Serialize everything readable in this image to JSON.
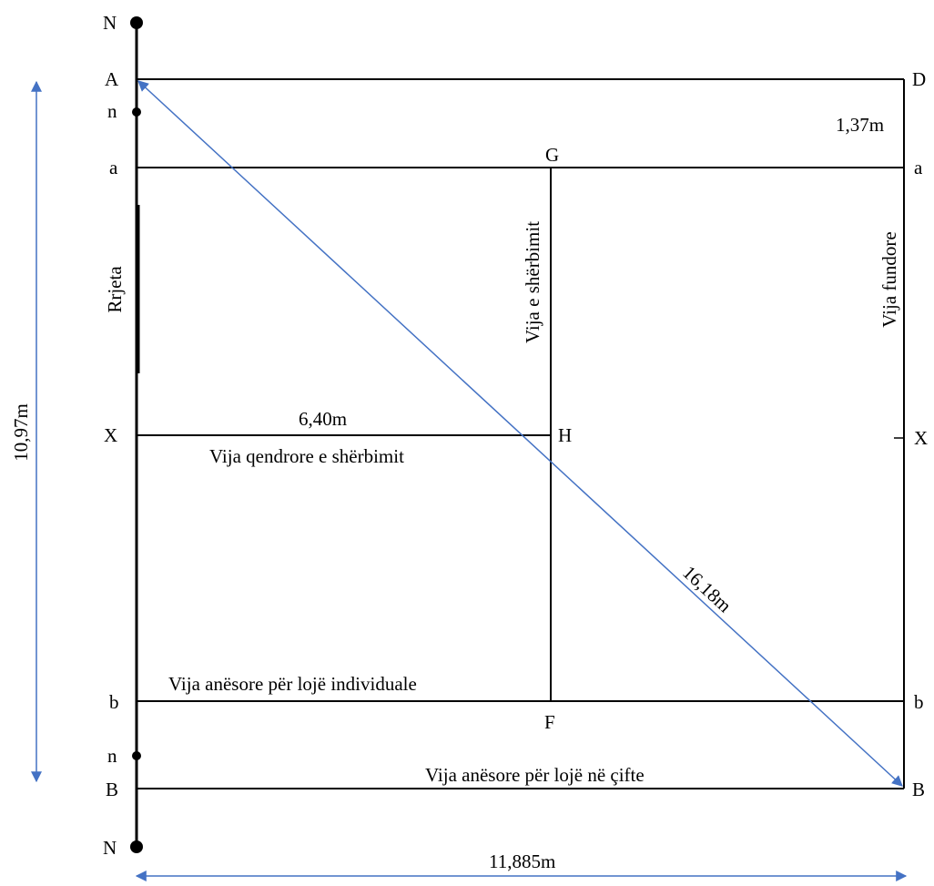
{
  "points": {
    "N_top": "N",
    "A": "A",
    "n_top": "n",
    "a_left": "a",
    "X_left": "X",
    "b_left": "b",
    "n_bottom": "n",
    "B_left": "B",
    "N_bottom": "N",
    "D": "D",
    "a_right": "a",
    "X_right": "X",
    "b_right": "b",
    "B_right": "B",
    "G": "G",
    "H": "H",
    "F": "F"
  },
  "labels": {
    "net": "Rrjeta",
    "service_line": "Vija e shërbimit",
    "baseline": "Vija fundore",
    "center_service_line": "Vija qendrore e shërbimit",
    "singles_sideline": "Vija anësore për lojë individuale",
    "doubles_sideline": "Vija anësore për lojë në çifte"
  },
  "measurements": {
    "width_total": "10,97m",
    "alley": "1,37m",
    "service_length": "6,40m",
    "diagonal": "16,18m",
    "half_length": "11,885m"
  },
  "colors": {
    "lines": "#000000",
    "dimension_arrows": "#4472C4"
  }
}
